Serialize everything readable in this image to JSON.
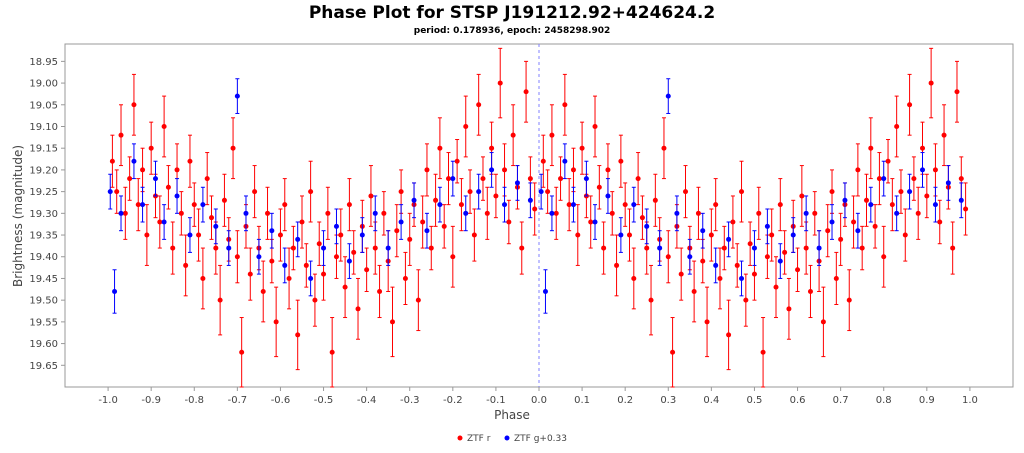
{
  "chart_data": {
    "type": "scatter",
    "title": "Phase Plot for STSP J191212.92+424624.2",
    "subtitle": "period: 0.178936, epoch: 2458298.902",
    "xlabel": "Phase",
    "ylabel": "Brightness (magnitude)",
    "xlim": [
      -1.1,
      1.1
    ],
    "ylim": [
      19.7,
      18.91
    ],
    "y_inverted": true,
    "grid": false,
    "legend": "bottom",
    "x_ticks": [
      "-1.0",
      "-0.9",
      "-0.8",
      "-0.7",
      "-0.6",
      "-0.5",
      "-0.4",
      "-0.3",
      "-0.2",
      "-0.1",
      "0.0",
      "0.1",
      "0.2",
      "0.3",
      "0.4",
      "0.5",
      "0.6",
      "0.7",
      "0.8",
      "0.9",
      "1.0"
    ],
    "y_ticks": [
      "18.95",
      "19.00",
      "19.05",
      "19.10",
      "19.15",
      "19.20",
      "19.25",
      "19.30",
      "19.35",
      "19.40",
      "19.45",
      "19.50",
      "19.55",
      "19.60",
      "19.65"
    ],
    "reference_line_x": 0.0,
    "series": [
      {
        "name": "ZTF r",
        "color": "#ff0000",
        "points": [
          [
            0.01,
            19.18,
            0.06
          ],
          [
            0.02,
            19.25,
            0.05
          ],
          [
            0.03,
            19.12,
            0.07
          ],
          [
            0.04,
            19.3,
            0.06
          ],
          [
            0.05,
            19.22,
            0.05
          ],
          [
            0.06,
            19.05,
            0.07
          ],
          [
            0.07,
            19.28,
            0.06
          ],
          [
            0.08,
            19.2,
            0.05
          ],
          [
            0.09,
            19.35,
            0.07
          ],
          [
            0.1,
            19.15,
            0.06
          ],
          [
            0.11,
            19.26,
            0.05
          ],
          [
            0.12,
            19.32,
            0.06
          ],
          [
            0.13,
            19.1,
            0.07
          ],
          [
            0.14,
            19.24,
            0.05
          ],
          [
            0.15,
            19.38,
            0.06
          ],
          [
            0.16,
            19.2,
            0.06
          ],
          [
            0.17,
            19.3,
            0.05
          ],
          [
            0.18,
            19.42,
            0.07
          ],
          [
            0.19,
            19.18,
            0.06
          ],
          [
            0.2,
            19.28,
            0.05
          ],
          [
            0.21,
            19.35,
            0.06
          ],
          [
            0.22,
            19.45,
            0.07
          ],
          [
            0.23,
            19.22,
            0.06
          ],
          [
            0.24,
            19.31,
            0.05
          ],
          [
            0.25,
            19.38,
            0.06
          ],
          [
            0.26,
            19.5,
            0.08
          ],
          [
            0.27,
            19.27,
            0.06
          ],
          [
            0.28,
            19.36,
            0.05
          ],
          [
            0.29,
            19.15,
            0.07
          ],
          [
            0.3,
            19.4,
            0.06
          ],
          [
            0.31,
            19.62,
            0.08
          ],
          [
            0.32,
            19.33,
            0.05
          ],
          [
            0.33,
            19.44,
            0.06
          ],
          [
            0.34,
            19.25,
            0.06
          ],
          [
            0.35,
            19.38,
            0.05
          ],
          [
            0.36,
            19.48,
            0.07
          ],
          [
            0.37,
            19.3,
            0.06
          ],
          [
            0.38,
            19.41,
            0.05
          ],
          [
            0.39,
            19.55,
            0.08
          ],
          [
            0.4,
            19.35,
            0.06
          ],
          [
            0.41,
            19.28,
            0.06
          ],
          [
            0.42,
            19.45,
            0.07
          ],
          [
            0.43,
            19.38,
            0.05
          ],
          [
            0.44,
            19.58,
            0.08
          ],
          [
            0.45,
            19.32,
            0.06
          ],
          [
            0.46,
            19.42,
            0.05
          ],
          [
            0.47,
            19.25,
            0.07
          ],
          [
            0.48,
            19.5,
            0.06
          ],
          [
            0.49,
            19.37,
            0.05
          ],
          [
            0.5,
            19.44,
            0.06
          ],
          [
            0.51,
            19.3,
            0.06
          ],
          [
            0.52,
            19.62,
            0.08
          ],
          [
            0.53,
            19.4,
            0.05
          ],
          [
            0.54,
            19.35,
            0.06
          ],
          [
            0.55,
            19.47,
            0.07
          ],
          [
            0.56,
            19.28,
            0.06
          ],
          [
            0.57,
            19.39,
            0.05
          ],
          [
            0.58,
            19.52,
            0.07
          ],
          [
            0.59,
            19.33,
            0.06
          ],
          [
            0.6,
            19.43,
            0.05
          ],
          [
            0.61,
            19.26,
            0.07
          ],
          [
            0.62,
            19.38,
            0.06
          ],
          [
            0.63,
            19.48,
            0.06
          ],
          [
            0.64,
            19.3,
            0.05
          ],
          [
            0.65,
            19.41,
            0.07
          ],
          [
            0.66,
            19.55,
            0.08
          ],
          [
            0.67,
            19.34,
            0.06
          ],
          [
            0.68,
            19.25,
            0.05
          ],
          [
            0.69,
            19.45,
            0.06
          ],
          [
            0.7,
            19.36,
            0.06
          ],
          [
            0.71,
            19.28,
            0.05
          ],
          [
            0.72,
            19.5,
            0.07
          ],
          [
            0.73,
            19.32,
            0.06
          ],
          [
            0.74,
            19.2,
            0.06
          ],
          [
            0.75,
            19.38,
            0.05
          ],
          [
            0.76,
            19.27,
            0.06
          ],
          [
            0.77,
            19.15,
            0.07
          ],
          [
            0.78,
            19.33,
            0.05
          ],
          [
            0.79,
            19.22,
            0.06
          ],
          [
            0.8,
            19.4,
            0.07
          ],
          [
            0.81,
            19.18,
            0.05
          ],
          [
            0.82,
            19.28,
            0.06
          ],
          [
            0.83,
            19.1,
            0.07
          ],
          [
            0.84,
            19.25,
            0.05
          ],
          [
            0.85,
            19.35,
            0.06
          ],
          [
            0.86,
            19.05,
            0.07
          ],
          [
            0.87,
            19.22,
            0.05
          ],
          [
            0.88,
            19.3,
            0.06
          ],
          [
            0.89,
            19.15,
            0.06
          ],
          [
            0.9,
            19.26,
            0.05
          ],
          [
            0.91,
            19.0,
            0.08
          ],
          [
            0.92,
            19.2,
            0.06
          ],
          [
            0.93,
            19.32,
            0.05
          ],
          [
            0.94,
            19.12,
            0.07
          ],
          [
            0.95,
            19.24,
            0.05
          ],
          [
            0.96,
            19.38,
            0.06
          ],
          [
            0.97,
            19.02,
            0.07
          ],
          [
            0.98,
            19.22,
            0.05
          ],
          [
            0.99,
            19.29,
            0.06
          ]
        ]
      },
      {
        "name": "ZTF g+0.33",
        "color": "#0000ff",
        "points": [
          [
            0.005,
            19.25,
            0.04
          ],
          [
            0.015,
            19.48,
            0.05
          ],
          [
            0.03,
            19.3,
            0.04
          ],
          [
            0.06,
            19.18,
            0.04
          ],
          [
            0.08,
            19.28,
            0.04
          ],
          [
            0.11,
            19.22,
            0.04
          ],
          [
            0.13,
            19.32,
            0.04
          ],
          [
            0.16,
            19.26,
            0.04
          ],
          [
            0.19,
            19.35,
            0.04
          ],
          [
            0.22,
            19.28,
            0.04
          ],
          [
            0.25,
            19.33,
            0.04
          ],
          [
            0.28,
            19.38,
            0.04
          ],
          [
            0.3,
            19.03,
            0.04
          ],
          [
            0.32,
            19.3,
            0.04
          ],
          [
            0.35,
            19.4,
            0.04
          ],
          [
            0.38,
            19.34,
            0.04
          ],
          [
            0.41,
            19.42,
            0.04
          ],
          [
            0.44,
            19.36,
            0.04
          ],
          [
            0.47,
            19.45,
            0.04
          ],
          [
            0.5,
            19.38,
            0.04
          ],
          [
            0.53,
            19.33,
            0.04
          ],
          [
            0.56,
            19.41,
            0.04
          ],
          [
            0.59,
            19.35,
            0.04
          ],
          [
            0.62,
            19.3,
            0.04
          ],
          [
            0.65,
            19.38,
            0.04
          ],
          [
            0.68,
            19.32,
            0.04
          ],
          [
            0.71,
            19.27,
            0.04
          ],
          [
            0.74,
            19.34,
            0.04
          ],
          [
            0.77,
            19.28,
            0.04
          ],
          [
            0.8,
            19.22,
            0.04
          ],
          [
            0.83,
            19.3,
            0.04
          ],
          [
            0.86,
            19.25,
            0.04
          ],
          [
            0.89,
            19.2,
            0.04
          ],
          [
            0.92,
            19.28,
            0.04
          ],
          [
            0.95,
            19.23,
            0.04
          ],
          [
            0.98,
            19.27,
            0.04
          ]
        ]
      }
    ]
  }
}
